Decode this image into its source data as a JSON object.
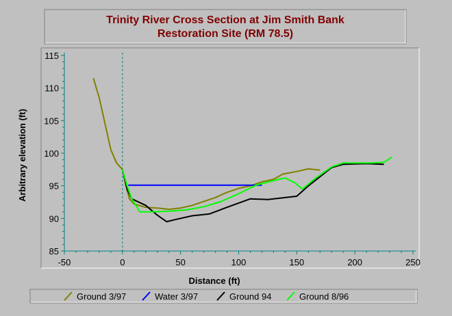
{
  "chart_data": {
    "type": "line",
    "title": "Trinity River Cross Section at  Jim Smith Bank Restoration Site (RM 78.5)",
    "title_lines": [
      "Trinity River Cross Section at  Jim Smith Bank",
      "Restoration Site (RM 78.5)"
    ],
    "xlabel": "Distance (ft)",
    "ylabel": "Arbitrary elevation (ft)",
    "xlim": [
      -50,
      250
    ],
    "ylim": [
      85,
      115
    ],
    "xticks": [
      -50,
      0,
      50,
      100,
      150,
      200,
      250
    ],
    "yticks": [
      85,
      90,
      95,
      100,
      105,
      110,
      115
    ],
    "grid": false,
    "legend_position": "bottom",
    "reference_line": {
      "x": 0,
      "style": "dashed",
      "color": "#008080"
    },
    "series": [
      {
        "name": "Ground 3/97",
        "color": "#808000",
        "points": [
          [
            -25,
            111.5
          ],
          [
            -20,
            108.5
          ],
          [
            -15,
            104.5
          ],
          [
            -10,
            100.5
          ],
          [
            -5,
            98.5
          ],
          [
            0,
            97.5
          ],
          [
            3,
            95
          ],
          [
            6,
            93
          ],
          [
            10,
            92.2
          ],
          [
            20,
            91.7
          ],
          [
            30,
            91.6
          ],
          [
            40,
            91.4
          ],
          [
            50,
            91.6
          ],
          [
            60,
            92
          ],
          [
            70,
            92.6
          ],
          [
            80,
            93.2
          ],
          [
            90,
            94
          ],
          [
            100,
            94.6
          ],
          [
            110,
            95
          ],
          [
            120,
            95.6
          ],
          [
            130,
            96
          ],
          [
            138,
            96.8
          ],
          [
            150,
            97.2
          ],
          [
            160,
            97.6
          ],
          [
            170,
            97.4
          ]
        ]
      },
      {
        "name": "Water 3/97",
        "color": "#0000ff",
        "points": [
          [
            5,
            95.1
          ],
          [
            120,
            95.1
          ]
        ]
      },
      {
        "name": "Ground 94",
        "color": "#000000",
        "points": [
          [
            0,
            97.5
          ],
          [
            4,
            94.5
          ],
          [
            8,
            93
          ],
          [
            20,
            92
          ],
          [
            30,
            90.5
          ],
          [
            38,
            89.5
          ],
          [
            45,
            89.8
          ],
          [
            60,
            90.4
          ],
          [
            75,
            90.7
          ],
          [
            90,
            91.7
          ],
          [
            110,
            93
          ],
          [
            125,
            92.9
          ],
          [
            150,
            93.4
          ],
          [
            160,
            95
          ],
          [
            170,
            96.4
          ],
          [
            180,
            97.8
          ],
          [
            190,
            98.3
          ],
          [
            210,
            98.4
          ],
          [
            225,
            98.3
          ]
        ]
      },
      {
        "name": "Ground 8/96",
        "color": "#00ff00",
        "points": [
          [
            0,
            97.5
          ],
          [
            4,
            95
          ],
          [
            8,
            93
          ],
          [
            15,
            91
          ],
          [
            25,
            91
          ],
          [
            40,
            91.1
          ],
          [
            55,
            91.3
          ],
          [
            70,
            91.8
          ],
          [
            85,
            92.6
          ],
          [
            100,
            93.8
          ],
          [
            115,
            95.1
          ],
          [
            130,
            95.8
          ],
          [
            140,
            96.2
          ],
          [
            148,
            95.5
          ],
          [
            155,
            94.5
          ],
          [
            165,
            96
          ],
          [
            180,
            97.9
          ],
          [
            190,
            98.5
          ],
          [
            200,
            98.5
          ],
          [
            215,
            98.5
          ],
          [
            225,
            98.6
          ],
          [
            232,
            99.4
          ]
        ]
      }
    ]
  }
}
